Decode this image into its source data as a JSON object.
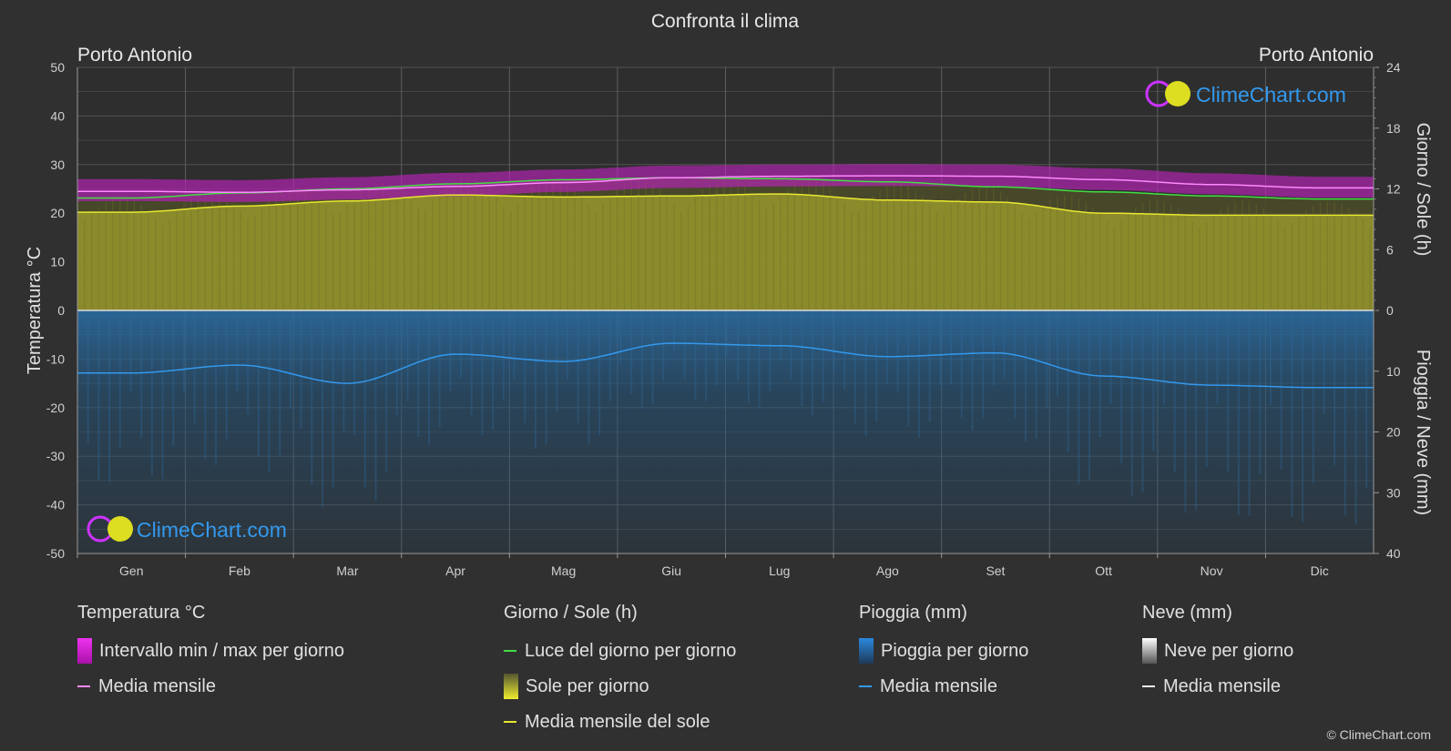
{
  "chart_data": {
    "type": "line",
    "title": "Confronta il clima",
    "location_left": "Porto Antonio",
    "location_right": "Porto Antonio",
    "brand": "ClimeChart.com",
    "copyright": "© ClimeChart.com",
    "categories": [
      "Gen",
      "Feb",
      "Mar",
      "Apr",
      "Mag",
      "Giu",
      "Lug",
      "Ago",
      "Set",
      "Ott",
      "Nov",
      "Dic"
    ],
    "y_left": {
      "label": "Temperatura °C",
      "range": [
        -50,
        50
      ],
      "ticks": [
        50,
        40,
        30,
        20,
        10,
        0,
        -10,
        -20,
        -30,
        -40,
        -50
      ]
    },
    "y_right_top": {
      "label": "Giorno / Sole (h)",
      "range": [
        0,
        24
      ],
      "ticks": [
        24,
        18,
        12,
        6,
        0
      ]
    },
    "y_right_bottom": {
      "label": "Pioggia / Neve (mm)",
      "range": [
        0,
        40
      ],
      "ticks": [
        10,
        20,
        30,
        40
      ]
    },
    "series": [
      {
        "name": "Media mensile",
        "group": "temperature",
        "color": "#ff88ff",
        "values": [
          24.5,
          24.3,
          24.8,
          25.5,
          26.3,
          27.3,
          27.6,
          27.7,
          27.6,
          26.9,
          25.9,
          25.2
        ]
      },
      {
        "name": "Luce del giorno per giorno",
        "group": "sun",
        "color": "#44dd44",
        "values": [
          11.1,
          11.6,
          12.0,
          12.5,
          12.9,
          13.1,
          13.0,
          12.7,
          12.2,
          11.7,
          11.3,
          11.0
        ]
      },
      {
        "name": "Media mensile del sole",
        "group": "sun",
        "color": "#e8e830",
        "values": [
          9.7,
          10.3,
          10.8,
          11.4,
          11.2,
          11.3,
          11.5,
          10.9,
          10.7,
          9.6,
          9.4,
          9.4
        ]
      },
      {
        "name": "Media mensile",
        "group": "rain",
        "color": "#3399ee",
        "values": [
          10.3,
          9.0,
          12.0,
          7.2,
          8.4,
          5.4,
          5.8,
          7.6,
          7.0,
          10.8,
          12.3,
          12.7
        ]
      },
      {
        "name": "Intervallo min / max per giorno",
        "group": "temperature_range",
        "color": "#cc22cc",
        "min": [
          22.5,
          22.3,
          22.8,
          23.5,
          24.4,
          25.2,
          25.5,
          25.6,
          25.5,
          24.8,
          23.9,
          23.2
        ],
        "max": [
          27.0,
          26.8,
          27.4,
          28.3,
          29.0,
          29.8,
          30.0,
          30.1,
          30.0,
          29.2,
          28.2,
          27.5
        ]
      }
    ],
    "grid": true,
    "legend_position": "bottom",
    "legend": [
      {
        "title": "Temperatura °C",
        "items": [
          {
            "label": "Intervallo min / max per giorno",
            "swatch": "box",
            "color": "#dd22dd"
          },
          {
            "label": "Media mensile",
            "swatch": "line",
            "color": "#ff88ff"
          }
        ]
      },
      {
        "title": "Giorno / Sole (h)",
        "items": [
          {
            "label": "Luce del giorno per giorno",
            "swatch": "line",
            "color": "#44dd44"
          },
          {
            "label": "Sole per giorno",
            "swatch": "box",
            "color": "#d8d830"
          },
          {
            "label": "Media mensile del sole",
            "swatch": "line",
            "color": "#e8e830"
          }
        ]
      },
      {
        "title": "Pioggia (mm)",
        "items": [
          {
            "label": "Pioggia per giorno",
            "swatch": "box",
            "color": "#2a88dd"
          },
          {
            "label": "Media mensile",
            "swatch": "line",
            "color": "#3399ee"
          }
        ]
      },
      {
        "title": "Neve (mm)",
        "items": [
          {
            "label": "Neve per giorno",
            "swatch": "box",
            "color": "#dddddd"
          },
          {
            "label": "Media mensile",
            "swatch": "line",
            "color": "#eeeeee"
          }
        ]
      }
    ]
  }
}
